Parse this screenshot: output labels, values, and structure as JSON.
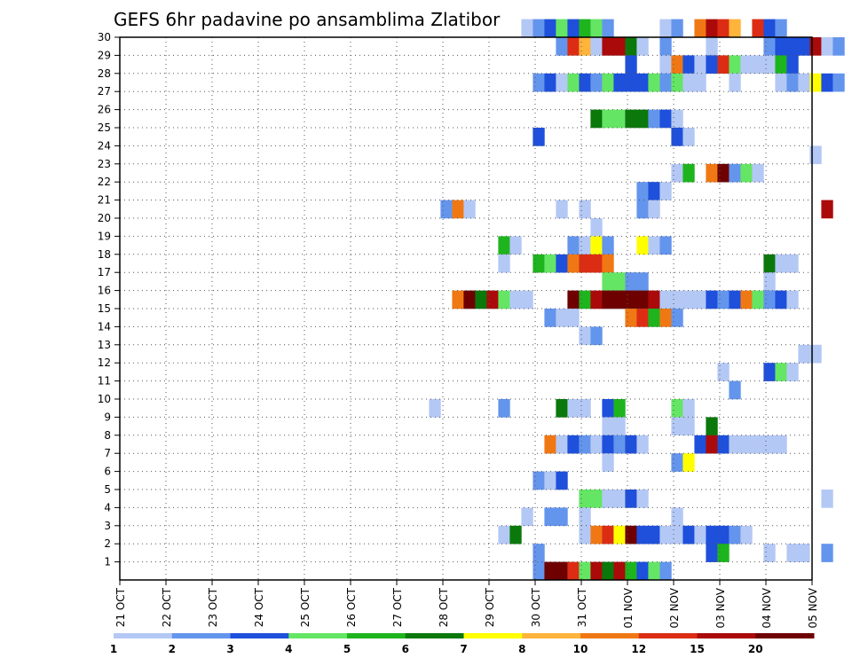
{
  "chart_data": {
    "type": "heatmap",
    "title": "GEFS 6hr padavine po ansamblima Zlatibor",
    "x_tick_labels": [
      "21 OCT",
      "22 OCT",
      "23 OCT",
      "24 OCT",
      "25 OCT",
      "26 OCT",
      "27 OCT",
      "28 OCT",
      "29 OCT",
      "30 OCT",
      "31 OCT",
      "01 NOV",
      "02 NOV",
      "03 NOV",
      "04 NOV",
      "05 NOV"
    ],
    "y_tick_labels": [
      "1",
      "2",
      "3",
      "4",
      "5",
      "6",
      "7",
      "8",
      "9",
      "10",
      "11",
      "12",
      "13",
      "14",
      "15",
      "16",
      "17",
      "18",
      "19",
      "20",
      "21",
      "22",
      "23",
      "24",
      "25",
      "26",
      "27",
      "28",
      "29",
      "30"
    ],
    "xlim": [
      0,
      15
    ],
    "ylim": [
      0,
      30
    ],
    "grid": true,
    "legend_placement": "bottom",
    "legend": {
      "labels": [
        "1",
        "2",
        "3",
        "4",
        "5",
        "6",
        "7",
        "8",
        "10",
        "12",
        "15",
        "20"
      ],
      "colors": [
        "#b4c8f5",
        "#6495ed",
        "#1e50dc",
        "#64e664",
        "#1eb41e",
        "#0a780a",
        "#ffff00",
        "#ffb43c",
        "#f07814",
        "#dc2d14",
        "#aa0a0a",
        "#6e0000"
      ]
    },
    "cells": [
      [
        8.7,
        30,
        1
      ],
      [
        8.95,
        30,
        2
      ],
      [
        9.2,
        30,
        3
      ],
      [
        9.45,
        30,
        4
      ],
      [
        9.7,
        30,
        3
      ],
      [
        9.95,
        30,
        5
      ],
      [
        10.2,
        30,
        4
      ],
      [
        10.45,
        30,
        2
      ],
      [
        11.7,
        30,
        1
      ],
      [
        11.95,
        30,
        2
      ],
      [
        12.45,
        30,
        9
      ],
      [
        12.7,
        30,
        11
      ],
      [
        12.95,
        30,
        10
      ],
      [
        13.2,
        30,
        8
      ],
      [
        13.7,
        30,
        10
      ],
      [
        13.95,
        30,
        3
      ],
      [
        14.2,
        30,
        2
      ],
      [
        9.45,
        29,
        2
      ],
      [
        9.7,
        29,
        10
      ],
      [
        9.95,
        29,
        8
      ],
      [
        10.2,
        29,
        1
      ],
      [
        10.45,
        29,
        11
      ],
      [
        10.7,
        29,
        11
      ],
      [
        10.95,
        29,
        6
      ],
      [
        11.2,
        29,
        1
      ],
      [
        11.7,
        29,
        2
      ],
      [
        12.7,
        29,
        1
      ],
      [
        13.95,
        29,
        2
      ],
      [
        14.2,
        29,
        3
      ],
      [
        14.45,
        29,
        3
      ],
      [
        14.7,
        29,
        3
      ],
      [
        14.95,
        29,
        11
      ],
      [
        15.2,
        29,
        1
      ],
      [
        15.45,
        29,
        2
      ],
      [
        10.95,
        28,
        3
      ],
      [
        11.7,
        28,
        1
      ],
      [
        11.95,
        28,
        9
      ],
      [
        12.2,
        28,
        3
      ],
      [
        12.45,
        28,
        1
      ],
      [
        12.7,
        28,
        3
      ],
      [
        12.95,
        28,
        10
      ],
      [
        13.2,
        28,
        4
      ],
      [
        13.45,
        28,
        1
      ],
      [
        13.7,
        28,
        1
      ],
      [
        13.95,
        28,
        1
      ],
      [
        14.2,
        28,
        5
      ],
      [
        14.45,
        28,
        3
      ],
      [
        8.95,
        27,
        2
      ],
      [
        9.2,
        27,
        3
      ],
      [
        9.45,
        27,
        1
      ],
      [
        9.7,
        27,
        4
      ],
      [
        9.95,
        27,
        3
      ],
      [
        10.2,
        27,
        2
      ],
      [
        10.45,
        27,
        4
      ],
      [
        10.7,
        27,
        3
      ],
      [
        10.95,
        27,
        3
      ],
      [
        11.2,
        27,
        3
      ],
      [
        11.45,
        27,
        4
      ],
      [
        11.7,
        27,
        2
      ],
      [
        11.95,
        27,
        4
      ],
      [
        12.2,
        27,
        1
      ],
      [
        12.45,
        27,
        1
      ],
      [
        13.2,
        27,
        1
      ],
      [
        14.2,
        27,
        1
      ],
      [
        14.45,
        27,
        2
      ],
      [
        14.7,
        27,
        1
      ],
      [
        14.95,
        27,
        7
      ],
      [
        15.2,
        27,
        3
      ],
      [
        15.45,
        27,
        2
      ],
      [
        10.2,
        25,
        6
      ],
      [
        10.45,
        25,
        4
      ],
      [
        10.7,
        25,
        4
      ],
      [
        10.95,
        25,
        6
      ],
      [
        11.2,
        25,
        6
      ],
      [
        11.45,
        25,
        2
      ],
      [
        11.7,
        25,
        3
      ],
      [
        11.95,
        25,
        1
      ],
      [
        8.95,
        24,
        3
      ],
      [
        11.95,
        24,
        3
      ],
      [
        12.2,
        24,
        1
      ],
      [
        14.95,
        23,
        1
      ],
      [
        11.95,
        22,
        1
      ],
      [
        12.2,
        22,
        5
      ],
      [
        12.7,
        22,
        9
      ],
      [
        12.95,
        22,
        12
      ],
      [
        13.2,
        22,
        2
      ],
      [
        13.45,
        22,
        4
      ],
      [
        13.7,
        22,
        1
      ],
      [
        11.2,
        21,
        2
      ],
      [
        11.45,
        21,
        3
      ],
      [
        11.7,
        21,
        1
      ],
      [
        6.95,
        20,
        2
      ],
      [
        7.2,
        20,
        9
      ],
      [
        7.45,
        20,
        1
      ],
      [
        9.45,
        20,
        1
      ],
      [
        9.95,
        20,
        1
      ],
      [
        11.2,
        20,
        2
      ],
      [
        11.45,
        20,
        1
      ],
      [
        15.2,
        20,
        11
      ],
      [
        10.2,
        19,
        1
      ],
      [
        8.2,
        18,
        5
      ],
      [
        8.45,
        18,
        1
      ],
      [
        9.7,
        18,
        2
      ],
      [
        9.95,
        18,
        1
      ],
      [
        10.2,
        18,
        7
      ],
      [
        10.45,
        18,
        2
      ],
      [
        11.2,
        18,
        7
      ],
      [
        11.45,
        18,
        1
      ],
      [
        11.7,
        18,
        2
      ],
      [
        8.2,
        17,
        1
      ],
      [
        8.95,
        17,
        5
      ],
      [
        9.2,
        17,
        4
      ],
      [
        9.45,
        17,
        3
      ],
      [
        9.7,
        17,
        9
      ],
      [
        9.95,
        17,
        10
      ],
      [
        10.2,
        17,
        10
      ],
      [
        10.45,
        17,
        9
      ],
      [
        13.95,
        17,
        6
      ],
      [
        14.2,
        17,
        1
      ],
      [
        14.45,
        17,
        1
      ],
      [
        10.45,
        16,
        4
      ],
      [
        10.7,
        16,
        4
      ],
      [
        10.95,
        16,
        2
      ],
      [
        11.2,
        16,
        2
      ],
      [
        13.95,
        16,
        1
      ],
      [
        7.2,
        15,
        9
      ],
      [
        7.45,
        15,
        12
      ],
      [
        7.7,
        15,
        6
      ],
      [
        7.95,
        15,
        11
      ],
      [
        8.2,
        15,
        4
      ],
      [
        8.45,
        15,
        1
      ],
      [
        8.7,
        15,
        1
      ],
      [
        9.7,
        15,
        12
      ],
      [
        9.95,
        15,
        5
      ],
      [
        10.2,
        15,
        11
      ],
      [
        10.45,
        15,
        12
      ],
      [
        10.7,
        15,
        12
      ],
      [
        10.95,
        15,
        12
      ],
      [
        11.2,
        15,
        12
      ],
      [
        11.45,
        15,
        11
      ],
      [
        11.7,
        15,
        1
      ],
      [
        11.95,
        15,
        1
      ],
      [
        12.2,
        15,
        1
      ],
      [
        12.45,
        15,
        1
      ],
      [
        12.7,
        15,
        3
      ],
      [
        12.95,
        15,
        2
      ],
      [
        13.2,
        15,
        3
      ],
      [
        13.45,
        15,
        9
      ],
      [
        13.7,
        15,
        4
      ],
      [
        13.95,
        15,
        2
      ],
      [
        14.2,
        15,
        3
      ],
      [
        14.45,
        15,
        1
      ],
      [
        9.2,
        14,
        2
      ],
      [
        9.45,
        14,
        1
      ],
      [
        9.7,
        14,
        1
      ],
      [
        10.95,
        14,
        9
      ],
      [
        11.2,
        14,
        10
      ],
      [
        11.45,
        14,
        5
      ],
      [
        11.7,
        14,
        9
      ],
      [
        11.95,
        14,
        2
      ],
      [
        9.95,
        13,
        1
      ],
      [
        10.2,
        13,
        2
      ],
      [
        14.7,
        12,
        1
      ],
      [
        14.95,
        12,
        1
      ],
      [
        12.95,
        11,
        1
      ],
      [
        13.95,
        11,
        3
      ],
      [
        14.2,
        11,
        4
      ],
      [
        14.45,
        11,
        1
      ],
      [
        13.2,
        10,
        2
      ],
      [
        6.7,
        9,
        1
      ],
      [
        8.2,
        9,
        2
      ],
      [
        9.45,
        9,
        6
      ],
      [
        9.7,
        9,
        1
      ],
      [
        9.95,
        9,
        1
      ],
      [
        10.45,
        9,
        3
      ],
      [
        10.7,
        9,
        5
      ],
      [
        11.95,
        9,
        4
      ],
      [
        12.2,
        9,
        1
      ],
      [
        10.45,
        8,
        1
      ],
      [
        10.7,
        8,
        1
      ],
      [
        11.95,
        8,
        1
      ],
      [
        12.2,
        8,
        1
      ],
      [
        12.7,
        8,
        6
      ],
      [
        9.2,
        7,
        9
      ],
      [
        9.45,
        7,
        1
      ],
      [
        9.7,
        7,
        3
      ],
      [
        9.95,
        7,
        2
      ],
      [
        10.2,
        7,
        1
      ],
      [
        10.45,
        7,
        3
      ],
      [
        10.7,
        7,
        2
      ],
      [
        10.95,
        7,
        3
      ],
      [
        11.2,
        7,
        1
      ],
      [
        12.45,
        7,
        3
      ],
      [
        12.7,
        7,
        11
      ],
      [
        12.95,
        7,
        3
      ],
      [
        13.2,
        7,
        1
      ],
      [
        13.45,
        7,
        1
      ],
      [
        13.7,
        7,
        1
      ],
      [
        13.95,
        7,
        1
      ],
      [
        14.2,
        7,
        1
      ],
      [
        10.45,
        6,
        1
      ],
      [
        11.95,
        6,
        2
      ],
      [
        12.2,
        6,
        7
      ],
      [
        8.95,
        5,
        2
      ],
      [
        9.2,
        5,
        1
      ],
      [
        9.45,
        5,
        3
      ],
      [
        9.95,
        4,
        4
      ],
      [
        10.2,
        4,
        4
      ],
      [
        10.45,
        4,
        1
      ],
      [
        10.7,
        4,
        1
      ],
      [
        10.95,
        4,
        3
      ],
      [
        11.2,
        4,
        1
      ],
      [
        15.2,
        4,
        1
      ],
      [
        8.7,
        3,
        1
      ],
      [
        9.2,
        3,
        2
      ],
      [
        9.45,
        3,
        2
      ],
      [
        9.95,
        3,
        1
      ],
      [
        11.95,
        3,
        1
      ],
      [
        8.2,
        2,
        1
      ],
      [
        8.45,
        2,
        6
      ],
      [
        9.95,
        2,
        1
      ],
      [
        10.2,
        2,
        9
      ],
      [
        10.45,
        2,
        10
      ],
      [
        10.7,
        2,
        7
      ],
      [
        10.95,
        2,
        12
      ],
      [
        11.2,
        2,
        3
      ],
      [
        11.45,
        2,
        3
      ],
      [
        11.7,
        2,
        1
      ],
      [
        11.95,
        2,
        1
      ],
      [
        12.2,
        2,
        3
      ],
      [
        12.45,
        2,
        1
      ],
      [
        12.7,
        2,
        3
      ],
      [
        12.95,
        2,
        3
      ],
      [
        13.2,
        2,
        2
      ],
      [
        13.45,
        2,
        1
      ],
      [
        8.95,
        1,
        2
      ],
      [
        12.7,
        1,
        3
      ],
      [
        12.95,
        1,
        5
      ],
      [
        13.95,
        1,
        1
      ],
      [
        14.45,
        1,
        1
      ],
      [
        14.7,
        1,
        1
      ],
      [
        15.2,
        1,
        2
      ],
      [
        8.95,
        0,
        2
      ],
      [
        9.2,
        0,
        12
      ],
      [
        9.45,
        0,
        12
      ],
      [
        9.7,
        0,
        10
      ],
      [
        9.95,
        0,
        4
      ],
      [
        10.2,
        0,
        11
      ],
      [
        10.45,
        0,
        6
      ],
      [
        10.7,
        0,
        11
      ],
      [
        10.95,
        0,
        5
      ],
      [
        11.2,
        0,
        3
      ],
      [
        11.45,
        0,
        4
      ],
      [
        11.7,
        0,
        2
      ]
    ]
  }
}
